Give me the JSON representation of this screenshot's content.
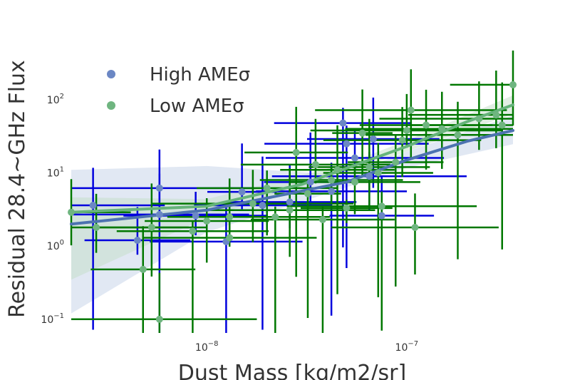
{
  "chart_data": {
    "type": "scatter",
    "xlabel": "Dust Mass [kg/m2/sr]",
    "ylabel": "Residual 28.4~GHz Flux",
    "x_scale": "log",
    "y_scale": "log",
    "xlim": [
      2.1e-09,
      3.4e-07
    ],
    "ylim": [
      0.065,
      600
    ],
    "x_ticks": [
      {
        "value": 1e-08,
        "label": "10",
        "exp": "−8"
      },
      {
        "value": 1e-07,
        "label": "10",
        "exp": "−7"
      }
    ],
    "y_ticks": [
      {
        "value": 0.1,
        "label": "10",
        "exp": "−1"
      },
      {
        "value": 1,
        "label": "10",
        "exp": "0"
      },
      {
        "value": 10,
        "label": "10",
        "exp": "1"
      },
      {
        "value": 100,
        "label": "10",
        "exp": "2"
      }
    ],
    "grid": false,
    "legend_position": "top-left",
    "colors": {
      "high_marker": "#6b87c4",
      "high_errbar": "#0000dd",
      "high_fit": "#4c72b0",
      "high_band": "#c9d5ea",
      "low_marker": "#6fb580",
      "low_errbar": "#007700",
      "low_fit": "#65b37a",
      "low_band": "#c3ddc8"
    },
    "series": [
      {
        "name": "High AMEσ",
        "points": [
          [
            2.7e-09,
            3.6
          ],
          [
            4.5e-09,
            1.2
          ],
          [
            5.8e-09,
            6.2
          ],
          [
            5.8e-09,
            2.7
          ],
          [
            8.8e-09,
            2.6
          ],
          [
            1.25e-08,
            1.15
          ],
          [
            1.5e-08,
            5.5
          ],
          [
            1.9e-08,
            3.6
          ],
          [
            2.6e-08,
            4.0
          ],
          [
            3.3e-08,
            7.5
          ],
          [
            4.2e-08,
            5.6
          ],
          [
            5.5e-08,
            16
          ],
          [
            6.5e-08,
            9.0
          ],
          [
            7.5e-08,
            2.6
          ],
          [
            5e-08,
            25
          ],
          [
            4.8e-08,
            48
          ],
          [
            6.8e-08,
            29
          ]
        ],
        "fit": [
          [
            2.1e-09,
            2.0
          ],
          [
            1e-08,
            3.1
          ],
          [
            5e-08,
            7.5
          ],
          [
            1e-07,
            15
          ],
          [
            2e-07,
            27
          ],
          [
            3.4e-07,
            38
          ]
        ]
      },
      {
        "name": "Low AMEσ",
        "points": [
          [
            2.1e-09,
            2.9
          ],
          [
            2.8e-09,
            1.8
          ],
          [
            4.8e-09,
            0.48
          ],
          [
            5.3e-09,
            1.8
          ],
          [
            5.8e-09,
            0.1
          ],
          [
            8.5e-09,
            1.6
          ],
          [
            1e-08,
            2.2
          ],
          [
            1.3e-08,
            1.3
          ],
          [
            1.3e-08,
            2.5
          ],
          [
            1.7e-08,
            3.8
          ],
          [
            2e-08,
            6.2
          ],
          [
            2.2e-08,
            2.5
          ],
          [
            2.6e-08,
            3.1
          ],
          [
            2.8e-08,
            19
          ],
          [
            3.2e-08,
            5.2
          ],
          [
            3.5e-08,
            13
          ],
          [
            3.8e-08,
            2.3
          ],
          [
            4.2e-08,
            8.0
          ],
          [
            4.5e-08,
            11
          ],
          [
            5e-08,
            3.3
          ],
          [
            5.5e-08,
            7.5
          ],
          [
            6e-08,
            35
          ],
          [
            6.5e-08,
            12
          ],
          [
            7.2e-08,
            10
          ],
          [
            7.5e-08,
            3.5
          ],
          [
            8.8e-08,
            14
          ],
          [
            9.5e-08,
            28
          ],
          [
            1e-07,
            38
          ],
          [
            1.05e-07,
            72
          ],
          [
            1.1e-07,
            1.8
          ],
          [
            1.25e-07,
            45
          ],
          [
            1.5e-07,
            40
          ],
          [
            1.8e-07,
            33
          ],
          [
            2.3e-07,
            55
          ],
          [
            2.8e-07,
            62
          ],
          [
            3e-07,
            45
          ],
          [
            3.4e-07,
            160
          ]
        ],
        "fit": [
          [
            2.1e-09,
            2.9
          ],
          [
            1e-08,
            3.5
          ],
          [
            3e-08,
            7.0
          ],
          [
            1e-07,
            23
          ],
          [
            2e-07,
            50
          ],
          [
            3.4e-07,
            85
          ]
        ]
      }
    ]
  }
}
